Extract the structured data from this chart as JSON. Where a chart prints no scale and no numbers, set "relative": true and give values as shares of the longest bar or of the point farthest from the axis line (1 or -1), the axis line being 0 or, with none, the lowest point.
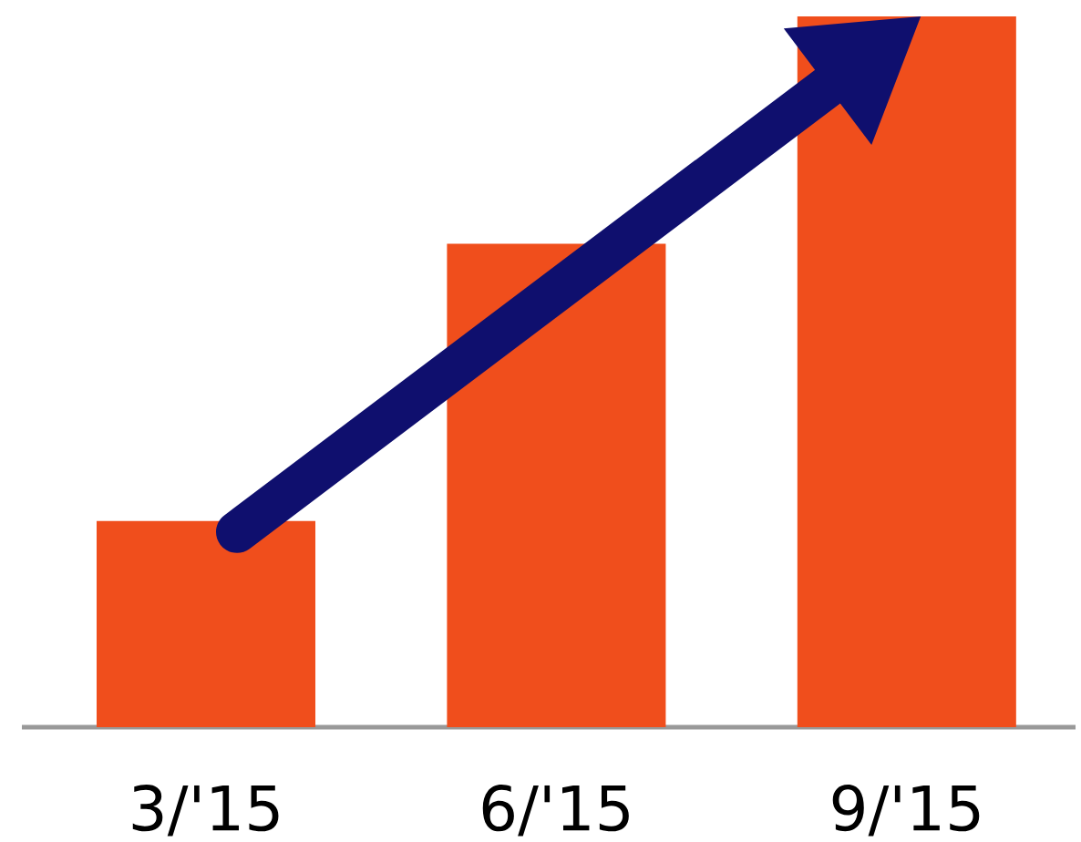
{
  "chart_data": {
    "type": "bar",
    "categories": [
      "3/'15",
      "6/'15",
      "9/'15"
    ],
    "values": [
      0.29,
      0.68,
      1
    ],
    "color": "#f04e1c",
    "relative": true
  }
}
